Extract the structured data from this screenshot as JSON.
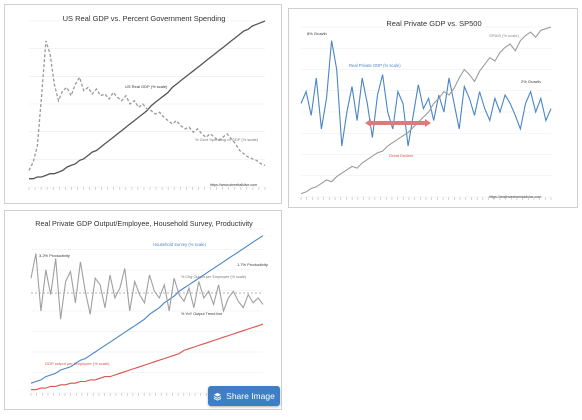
{
  "chart_data": [
    {
      "type": "line",
      "title": "US Real GDP vs. Percent Government Spending",
      "series": [
        {
          "name": "US Real GDP (% scale)",
          "color": "#555555",
          "style": "solid",
          "values": [
            5,
            5,
            6,
            6,
            7,
            8,
            8,
            9,
            10,
            12,
            13,
            14,
            16,
            17,
            19,
            21,
            22,
            24,
            26,
            28,
            30,
            32,
            34,
            36,
            38,
            40,
            42,
            44,
            46,
            49,
            51,
            53,
            55,
            57,
            60,
            62,
            64,
            66,
            68,
            70,
            72,
            74,
            76,
            78,
            80,
            82,
            84,
            86,
            88,
            90,
            92,
            94,
            95,
            97,
            98,
            99,
            100
          ]
        },
        {
          "name": "% Govt Spending of GDP (% scale)",
          "color": "#999999",
          "style": "dashed",
          "values": [
            10,
            15,
            25,
            55,
            88,
            80,
            62,
            52,
            58,
            60,
            55,
            62,
            66,
            58,
            60,
            56,
            59,
            55,
            56,
            53,
            57,
            54,
            52,
            55,
            50,
            52,
            48,
            50,
            47,
            46,
            44,
            45,
            42,
            40,
            38,
            40,
            37,
            35,
            36,
            33,
            35,
            32,
            30,
            32,
            30,
            28,
            30,
            32,
            29,
            26,
            22,
            20,
            18,
            17,
            16,
            14,
            13
          ]
        }
      ],
      "annotations": [
        "US Real GDP (% scale)",
        "% Govt Spending of GDP (% scale)",
        "https://www.streettalklive.com"
      ]
    },
    {
      "type": "line",
      "title": "Real Private GDP vs. SP500",
      "series": [
        {
          "name": "Real Private GDP (% scale)",
          "color": "#4a86c5",
          "style": "solid",
          "values": [
            55,
            62,
            48,
            70,
            40,
            58,
            92,
            75,
            30,
            50,
            65,
            45,
            70,
            55,
            35,
            60,
            72,
            50,
            40,
            62,
            55,
            30,
            48,
            66,
            52,
            58,
            45,
            60,
            50,
            70,
            55,
            40,
            65,
            58,
            48,
            62,
            52,
            45,
            58,
            50,
            60,
            55,
            48,
            40,
            55,
            62,
            50,
            58,
            45,
            52
          ]
        },
        {
          "name": "SP500 (% scale)",
          "color": "#9c9c9c",
          "style": "solid",
          "values": [
            2,
            3,
            5,
            6,
            8,
            10,
            9,
            12,
            14,
            16,
            18,
            17,
            20,
            22,
            24,
            26,
            27,
            30,
            32,
            34,
            36,
            38,
            41,
            44,
            47,
            50,
            55,
            58,
            62,
            60,
            64,
            70,
            75,
            72,
            68,
            74,
            78,
            82,
            80,
            85,
            88,
            90,
            86,
            92,
            95,
            97,
            94,
            98,
            99,
            100
          ]
        }
      ],
      "annotations": [
        "8% Growth",
        "Real Private GDP (% scale)",
        "SP500 (% scale)",
        "2% Growth",
        "Great Decline",
        "https://realinvestmentadvice.com"
      ]
    },
    {
      "type": "line",
      "title": "Real Private GDP Output/Employee, Household Survey, Productivity",
      "series": [
        {
          "name": "Household Survey (% scale)",
          "color": "#4a86c5",
          "style": "solid",
          "values": [
            6,
            7,
            8,
            10,
            11,
            12,
            14,
            15,
            16,
            18,
            20,
            21,
            23,
            25,
            27,
            29,
            31,
            33,
            35,
            37,
            39,
            41,
            43,
            45,
            48,
            50,
            52,
            55,
            57,
            59,
            62,
            64,
            66,
            68,
            70,
            72,
            74,
            76,
            78,
            80,
            82,
            84,
            86,
            88,
            90,
            92,
            94,
            96
          ]
        },
        {
          "name": "GDP output per Employee (% scale)",
          "color": "#d9534f",
          "style": "solid",
          "values": [
            2,
            2,
            3,
            3,
            4,
            4,
            5,
            5,
            6,
            6,
            7,
            7,
            8,
            8,
            9,
            10,
            10,
            11,
            12,
            13,
            14,
            15,
            16,
            17,
            18,
            19,
            20,
            21,
            22,
            23,
            24,
            26,
            27,
            28,
            29,
            30,
            31,
            32,
            33,
            34,
            35,
            36,
            37,
            38,
            39,
            40,
            41,
            42
          ]
        },
        {
          "name": "% Chg Output per Employee (% scale)",
          "color": "#a0a0a0",
          "style": "solid",
          "values": [
            70,
            85,
            50,
            75,
            60,
            82,
            45,
            68,
            74,
            55,
            80,
            62,
            48,
            70,
            66,
            52,
            72,
            58,
            64,
            76,
            50,
            68,
            60,
            55,
            72,
            62,
            58,
            66,
            50,
            70,
            60,
            56,
            64,
            52,
            68,
            58,
            62,
            54,
            66,
            50,
            58,
            62,
            56,
            52,
            60,
            55,
            58,
            54
          ]
        }
      ],
      "annotations": [
        "3.2% Productivity",
        "Household Survey (% scale)",
        "1.7% Productivity",
        "% Chg Output per Employee (% scale)",
        "% YoY Output Trend line",
        "GDP output per Employee (% scale)"
      ]
    }
  ],
  "ui": {
    "share_label": "Share Image",
    "share_icon": "stack-icon"
  }
}
